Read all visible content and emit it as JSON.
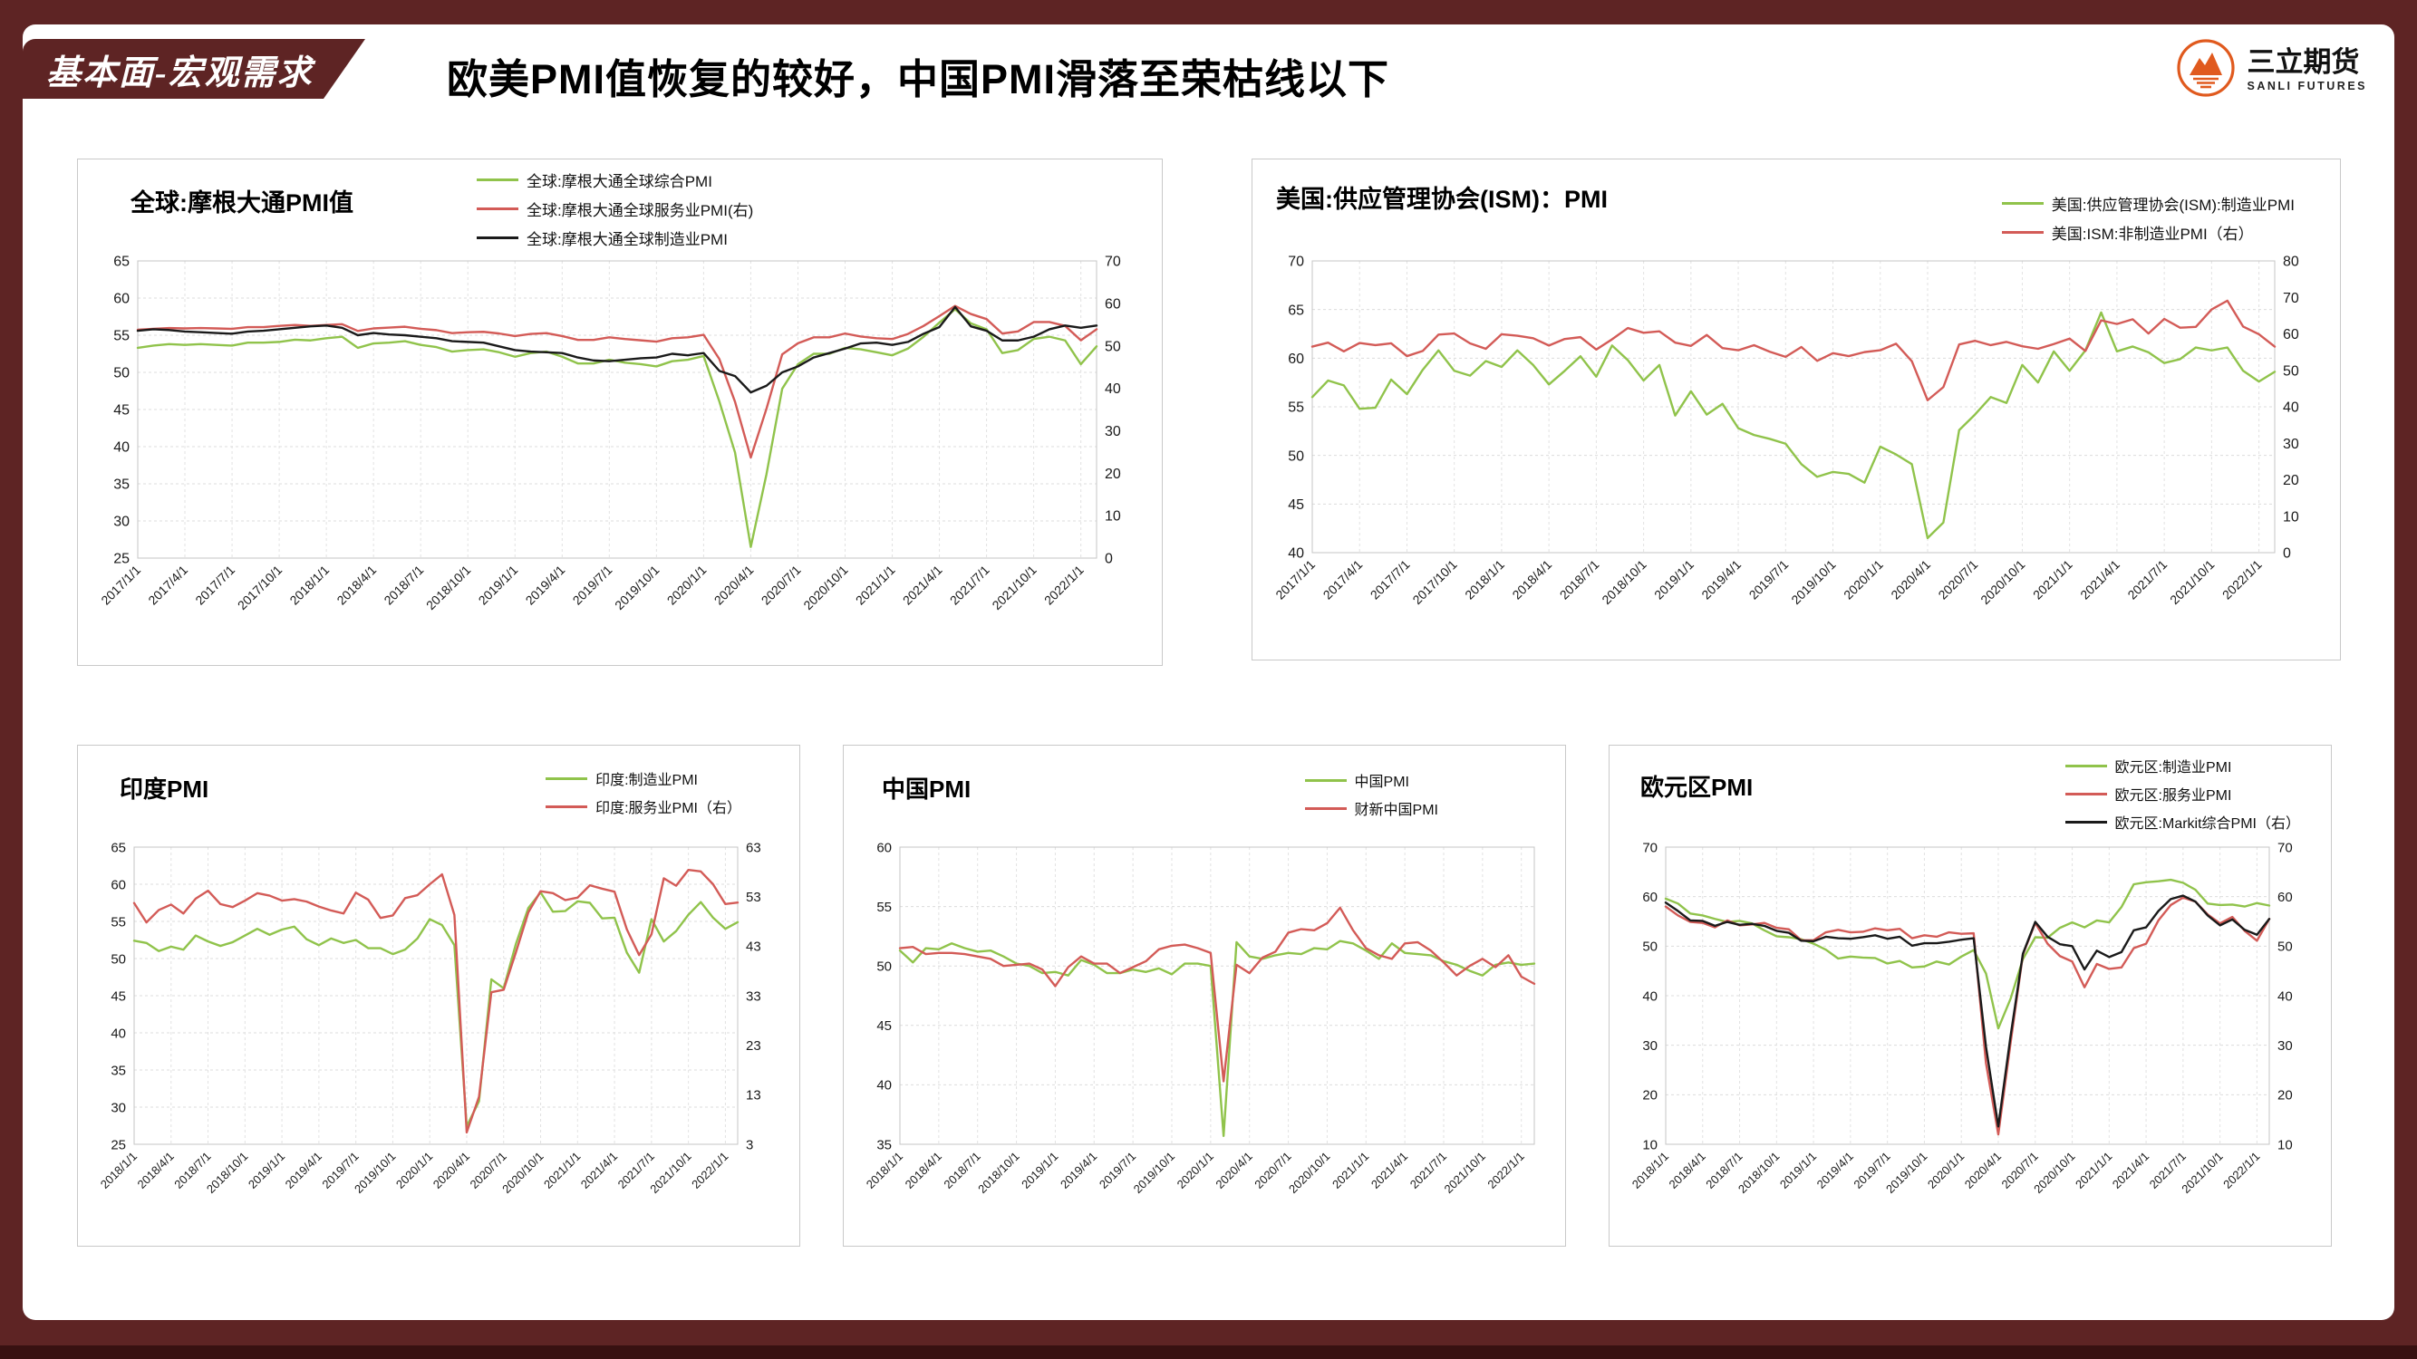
{
  "header": {
    "section_label": "基本面-宏观需求",
    "title": "欧美PMI值恢复的较好，中国PMI滑落至荣枯线以下",
    "logo": {
      "name": "三立期货",
      "subtitle": "SANLI FUTURES"
    }
  },
  "colors": {
    "green": "#90C34B",
    "red": "#D35B57",
    "black": "#1a1a1a",
    "frame": "#5E2424"
  },
  "chart_data": [
    {
      "type": "line",
      "title": "全球:摩根大通PMI值",
      "left_axis": {
        "min": 25,
        "max": 65,
        "ticks": [
          25,
          30,
          35,
          40,
          45,
          50,
          55,
          60,
          65
        ]
      },
      "right_axis": {
        "min": 0,
        "max": 70,
        "ticks": [
          0,
          10,
          20,
          30,
          40,
          50,
          60,
          70
        ]
      },
      "label_month_step": 3,
      "x_labels": [
        "2017/1/1",
        "2017/4/1",
        "2017/7/1",
        "2017/10/1",
        "2018/1/1",
        "2018/4/1",
        "2018/7/1",
        "2018/10/1",
        "2019/1/1",
        "2019/4/1",
        "2019/7/1",
        "2019/10/1",
        "2020/1/1",
        "2020/4/1",
        "2020/7/1",
        "2020/10/1",
        "2021/1/1",
        "2021/4/1",
        "2021/7/1",
        "2021/10/1",
        "2022/1/1"
      ],
      "layout": {
        "margins": {
          "l": 66,
          "r": 72,
          "t": 112,
          "b": 118
        },
        "tick_font": 16,
        "xlabel_font": 14
      },
      "series": [
        {
          "name": "全球:摩根大通全球综合PMI",
          "color_key": "green",
          "axis": "left",
          "values": [
            53.3,
            53.6,
            53.8,
            53.7,
            53.8,
            53.7,
            53.6,
            54.0,
            54.0,
            54.1,
            54.4,
            54.3,
            54.6,
            54.8,
            53.3,
            53.9,
            54.0,
            54.2,
            53.7,
            53.4,
            52.8,
            53.0,
            53.1,
            52.7,
            52.1,
            52.6,
            52.8,
            52.1,
            51.2,
            51.2,
            51.7,
            51.3,
            51.1,
            50.8,
            51.5,
            51.7,
            52.2,
            46.1,
            39.2,
            26.5,
            36.3,
            47.8,
            51.1,
            52.5,
            52.5,
            53.3,
            53.1,
            52.7,
            52.3,
            53.2,
            54.8,
            56.7,
            58.5,
            56.6,
            55.8,
            52.6,
            53.0,
            54.5,
            54.8,
            54.3,
            51.1,
            53.5
          ]
        },
        {
          "name": "全球:摩根大通全球服务业PMI(右)",
          "color_key": "red",
          "axis": "right",
          "values": [
            53.8,
            54.0,
            54.2,
            54.1,
            54.2,
            54.1,
            54.0,
            54.4,
            54.4,
            54.7,
            54.9,
            54.7,
            54.9,
            55.1,
            53.5,
            54.1,
            54.3,
            54.5,
            54.0,
            53.7,
            53.0,
            53.2,
            53.3,
            52.9,
            52.3,
            52.8,
            53.0,
            52.3,
            51.4,
            51.4,
            52.0,
            51.6,
            51.3,
            51.0,
            51.8,
            52.0,
            52.6,
            46.9,
            36.8,
            23.7,
            35.2,
            48.0,
            50.6,
            52.0,
            52.0,
            52.9,
            52.2,
            51.8,
            51.6,
            52.8,
            54.7,
            57.0,
            59.4,
            57.5,
            56.3,
            52.9,
            53.4,
            55.6,
            55.6,
            54.7,
            51.3,
            53.9
          ]
        },
        {
          "name": "全球:摩根大通全球制造业PMI",
          "color_key": "black",
          "axis": "left",
          "values": [
            55.6,
            55.8,
            55.7,
            55.5,
            55.4,
            55.3,
            55.2,
            55.5,
            55.6,
            55.8,
            56.0,
            56.2,
            56.3,
            56.0,
            55.0,
            55.3,
            55.1,
            55.0,
            54.8,
            54.6,
            54.2,
            54.1,
            54.0,
            53.5,
            53.0,
            52.8,
            52.7,
            52.6,
            52.0,
            51.6,
            51.5,
            51.7,
            51.9,
            52.0,
            52.5,
            52.3,
            52.6,
            50.2,
            49.5,
            47.3,
            48.2,
            50.0,
            50.8,
            52.0,
            52.6,
            53.2,
            53.9,
            54.0,
            53.7,
            54.1,
            55.2,
            56.1,
            58.8,
            56.2,
            55.6,
            54.3,
            54.3,
            54.8,
            55.8,
            56.3,
            56.0,
            56.3
          ]
        }
      ]
    },
    {
      "type": "line",
      "title": "美国:供应管理协会(ISM)：PMI",
      "left_axis": {
        "min": 40,
        "max": 70,
        "ticks": [
          40,
          45,
          50,
          55,
          60,
          65,
          70
        ]
      },
      "right_axis": {
        "min": 0,
        "max": 80,
        "ticks": [
          0,
          10,
          20,
          30,
          40,
          50,
          60,
          70,
          80
        ]
      },
      "label_month_step": 3,
      "x_labels": [
        "2017/1/1",
        "2017/4/1",
        "2017/7/1",
        "2017/10/1",
        "2018/1/1",
        "2018/4/1",
        "2018/7/1",
        "2018/10/1",
        "2019/1/1",
        "2019/4/1",
        "2019/7/1",
        "2019/10/1",
        "2020/1/1",
        "2020/4/1",
        "2020/7/1",
        "2020/10/1",
        "2021/1/1",
        "2021/4/1",
        "2021/7/1",
        "2021/10/1",
        "2022/1/1"
      ],
      "layout": {
        "margins": {
          "l": 66,
          "r": 72,
          "t": 112,
          "b": 118
        },
        "tick_font": 16,
        "xlabel_font": 14
      },
      "series": [
        {
          "name": "美国:供应管理协会(ISM):制造业PMI",
          "color_key": "green",
          "axis": "left",
          "values": [
            56.0,
            57.7,
            57.2,
            54.8,
            54.9,
            57.8,
            56.3,
            58.8,
            60.8,
            58.7,
            58.2,
            59.7,
            59.1,
            60.8,
            59.3,
            57.3,
            58.7,
            60.2,
            58.1,
            61.3,
            59.8,
            57.7,
            59.3,
            54.1,
            56.6,
            54.2,
            55.3,
            52.8,
            52.1,
            51.7,
            51.2,
            49.1,
            47.8,
            48.3,
            48.1,
            47.2,
            50.9,
            50.1,
            49.1,
            41.5,
            43.1,
            52.6,
            54.2,
            56.0,
            55.4,
            59.3,
            57.5,
            60.7,
            58.7,
            60.8,
            64.7,
            60.7,
            61.2,
            60.6,
            59.5,
            59.9,
            61.1,
            60.8,
            61.1,
            58.7,
            57.6,
            58.6
          ]
        },
        {
          "name": "美国:ISM:非制造业PMI（右）",
          "color_key": "red",
          "axis": "right",
          "values": [
            56.5,
            57.6,
            55.2,
            57.5,
            56.9,
            57.4,
            53.9,
            55.3,
            59.8,
            60.1,
            57.4,
            55.9,
            59.9,
            59.5,
            58.8,
            56.8,
            58.6,
            59.1,
            55.7,
            58.5,
            61.6,
            60.3,
            60.7,
            57.6,
            56.7,
            59.7,
            56.1,
            55.5,
            56.9,
            55.1,
            53.7,
            56.4,
            52.6,
            54.7,
            53.9,
            55.0,
            55.5,
            57.3,
            52.5,
            41.8,
            45.4,
            57.1,
            58.1,
            56.9,
            57.8,
            56.6,
            55.9,
            57.2,
            58.7,
            55.3,
            63.7,
            62.7,
            64.0,
            60.1,
            64.1,
            61.7,
            61.9,
            66.7,
            69.1,
            62.0,
            59.9,
            56.5
          ]
        }
      ]
    },
    {
      "type": "line",
      "title": "印度PMI",
      "left_axis": {
        "min": 25,
        "max": 65,
        "ticks": [
          25,
          30,
          35,
          40,
          45,
          50,
          55,
          60,
          65
        ]
      },
      "right_axis": {
        "min": 3,
        "max": 63,
        "ticks": [
          3,
          13,
          23,
          33,
          43,
          53,
          63
        ]
      },
      "label_month_step": 3,
      "x_labels": [
        "2018/1/1",
        "2018/4/1",
        "2018/7/1",
        "2018/10/1",
        "2019/1/1",
        "2019/4/1",
        "2019/7/1",
        "2019/10/1",
        "2020/1/1",
        "2020/4/1",
        "2020/7/1",
        "2020/10/1",
        "2021/1/1",
        "2021/4/1",
        "2021/7/1",
        "2021/10/1",
        "2022/1/1"
      ],
      "layout": {
        "margins": {
          "l": 62,
          "r": 68,
          "t": 112,
          "b": 112
        },
        "tick_font": 15,
        "xlabel_font": 13
      },
      "series": [
        {
          "name": "印度:制造业PMI",
          "color_key": "green",
          "axis": "left",
          "values": [
            52.4,
            52.1,
            51.0,
            51.6,
            51.2,
            53.1,
            52.3,
            51.7,
            52.2,
            53.1,
            54.0,
            53.2,
            53.9,
            54.3,
            52.6,
            51.8,
            52.7,
            52.1,
            52.5,
            51.4,
            51.4,
            50.6,
            51.2,
            52.7,
            55.3,
            54.5,
            51.8,
            27.4,
            30.8,
            47.2,
            46.0,
            52.0,
            56.8,
            58.9,
            56.3,
            56.4,
            57.7,
            57.5,
            55.4,
            55.5,
            50.8,
            48.1,
            55.3,
            52.3,
            53.7,
            55.9,
            57.6,
            55.5,
            54.0,
            54.9
          ]
        },
        {
          "name": "印度:服务业PMI（右）",
          "color_key": "red",
          "axis": "right",
          "values": [
            51.7,
            47.8,
            50.3,
            51.4,
            49.6,
            52.6,
            54.2,
            51.5,
            50.9,
            52.2,
            53.7,
            53.2,
            52.2,
            52.5,
            52.0,
            51.0,
            50.2,
            49.6,
            53.8,
            52.4,
            48.7,
            49.2,
            52.7,
            53.3,
            55.5,
            57.5,
            49.3,
            5.4,
            12.6,
            33.7,
            34.2,
            41.8,
            49.8,
            54.1,
            53.7,
            52.3,
            52.8,
            55.3,
            54.6,
            54.0,
            46.4,
            41.2,
            45.4,
            56.7,
            55.2,
            58.4,
            58.1,
            55.5,
            51.5,
            51.8
          ]
        }
      ]
    },
    {
      "type": "line",
      "title": "中国PMI",
      "left_axis": {
        "min": 35,
        "max": 60,
        "ticks": [
          35,
          40,
          45,
          50,
          55,
          60
        ]
      },
      "right_axis": null,
      "label_month_step": 3,
      "x_labels": [
        "2018/1/1",
        "2018/4/1",
        "2018/7/1",
        "2018/10/1",
        "2019/1/1",
        "2019/4/1",
        "2019/7/1",
        "2019/10/1",
        "2020/1/1",
        "2020/4/1",
        "2020/7/1",
        "2020/10/1",
        "2021/1/1",
        "2021/4/1",
        "2021/7/1",
        "2021/10/1",
        "2022/1/1"
      ],
      "layout": {
        "margins": {
          "l": 62,
          "r": 34,
          "t": 112,
          "b": 112
        },
        "tick_font": 15,
        "xlabel_font": 13
      },
      "series": [
        {
          "name": "中国PMI",
          "color_key": "green",
          "axis": "left",
          "values": [
            51.3,
            50.3,
            51.5,
            51.4,
            51.9,
            51.5,
            51.2,
            51.3,
            50.8,
            50.2,
            50.0,
            49.4,
            49.5,
            49.2,
            50.5,
            50.1,
            49.4,
            49.4,
            49.7,
            49.5,
            49.8,
            49.3,
            50.2,
            50.2,
            50.0,
            35.7,
            52.0,
            50.8,
            50.6,
            50.9,
            51.1,
            51.0,
            51.5,
            51.4,
            52.1,
            51.9,
            51.3,
            50.6,
            51.9,
            51.1,
            51.0,
            50.9,
            50.4,
            50.1,
            49.6,
            49.2,
            50.1,
            50.3,
            50.1,
            50.2
          ]
        },
        {
          "name": "财新中国PMI",
          "color_key": "red",
          "axis": "left",
          "values": [
            51.5,
            51.6,
            51.0,
            51.1,
            51.1,
            51.0,
            50.8,
            50.6,
            50.0,
            50.1,
            50.2,
            49.7,
            48.3,
            49.9,
            50.8,
            50.2,
            50.2,
            49.4,
            49.9,
            50.4,
            51.4,
            51.7,
            51.8,
            51.5,
            51.1,
            40.3,
            50.1,
            49.4,
            50.7,
            51.2,
            52.8,
            53.1,
            53.0,
            53.6,
            54.9,
            53.0,
            51.5,
            50.9,
            50.6,
            51.9,
            52.0,
            51.3,
            50.3,
            49.2,
            50.0,
            50.6,
            49.9,
            50.9,
            49.1,
            48.5
          ]
        }
      ]
    },
    {
      "type": "line",
      "title": "欧元区PMI",
      "left_axis": {
        "min": 10,
        "max": 70,
        "ticks": [
          10,
          20,
          30,
          40,
          50,
          60,
          70
        ]
      },
      "right_axis": {
        "min": 10,
        "max": 70,
        "ticks": [
          10,
          20,
          30,
          40,
          50,
          60,
          70
        ]
      },
      "label_month_step": 3,
      "x_labels": [
        "2018/1/1",
        "2018/4/1",
        "2018/7/1",
        "2018/10/1",
        "2019/1/1",
        "2019/4/1",
        "2019/7/1",
        "2019/10/1",
        "2020/1/1",
        "2020/4/1",
        "2020/7/1",
        "2020/10/1",
        "2021/1/1",
        "2021/4/1",
        "2021/7/1",
        "2021/10/1",
        "2022/1/1"
      ],
      "layout": {
        "margins": {
          "l": 62,
          "r": 68,
          "t": 112,
          "b": 112
        },
        "tick_font": 15,
        "xlabel_font": 13
      },
      "series": [
        {
          "name": "欧元区:制造业PMI",
          "color_key": "green",
          "axis": "left",
          "values": [
            59.6,
            58.6,
            56.6,
            56.2,
            55.5,
            54.9,
            55.1,
            54.6,
            53.2,
            52.0,
            51.8,
            51.4,
            50.5,
            49.3,
            47.5,
            47.9,
            47.7,
            47.6,
            46.5,
            47.0,
            45.7,
            45.9,
            46.9,
            46.3,
            47.9,
            49.2,
            44.5,
            33.4,
            39.4,
            47.4,
            51.8,
            51.7,
            53.7,
            54.8,
            53.8,
            55.2,
            54.8,
            57.9,
            62.5,
            62.9,
            63.1,
            63.4,
            62.8,
            61.4,
            58.6,
            58.3,
            58.4,
            58.0,
            58.7,
            58.2
          ]
        },
        {
          "name": "欧元区:服务业PMI",
          "color_key": "red",
          "axis": "left",
          "values": [
            58.0,
            56.2,
            54.9,
            54.7,
            53.8,
            55.2,
            54.2,
            54.4,
            54.7,
            53.7,
            53.4,
            51.2,
            51.2,
            52.8,
            53.3,
            52.8,
            52.9,
            53.6,
            53.2,
            53.5,
            51.6,
            52.2,
            51.9,
            52.8,
            52.5,
            52.6,
            26.4,
            12.0,
            30.5,
            48.3,
            54.7,
            50.5,
            48.0,
            46.9,
            41.7,
            46.4,
            45.4,
            45.7,
            49.6,
            50.5,
            55.2,
            58.3,
            59.8,
            59.0,
            56.4,
            54.6,
            55.9,
            53.1,
            51.1,
            55.5
          ]
        },
        {
          "name": "欧元区:Markit综合PMI（右）",
          "color_key": "black",
          "axis": "right",
          "values": [
            58.8,
            57.1,
            55.2,
            55.1,
            54.1,
            54.9,
            54.3,
            54.5,
            54.1,
            53.1,
            52.7,
            51.1,
            51.0,
            51.9,
            51.6,
            51.5,
            51.8,
            52.2,
            51.5,
            51.9,
            50.1,
            50.6,
            50.6,
            50.9,
            51.3,
            51.6,
            29.7,
            13.6,
            31.9,
            48.5,
            54.9,
            51.9,
            50.4,
            50.0,
            45.3,
            49.1,
            47.8,
            48.8,
            53.2,
            53.8,
            57.1,
            59.5,
            60.2,
            59.0,
            56.2,
            54.2,
            55.4,
            53.3,
            52.3,
            55.5
          ]
        }
      ]
    }
  ]
}
